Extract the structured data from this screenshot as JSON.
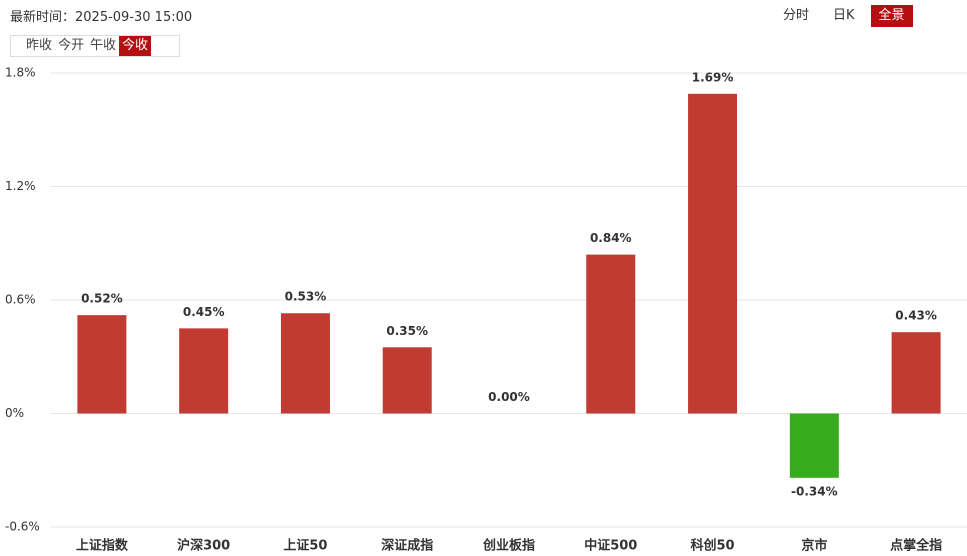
{
  "header": {
    "time_text": "最新时间：2025-09-30 15:00",
    "view_tabs": [
      {
        "label": "分时"
      },
      {
        "label": "日K"
      },
      {
        "label": "全景",
        "active": true
      }
    ],
    "base_buttons": [
      {
        "label": "昨收"
      },
      {
        "label": "今开"
      },
      {
        "label": "午收"
      },
      {
        "label": "今收",
        "active": true
      }
    ]
  },
  "chart_data": {
    "type": "bar",
    "categories": [
      "上证指数",
      "沪深300",
      "上证50",
      "深证成指",
      "创业板指",
      "中证500",
      "科创50",
      "京市",
      "点掌全指"
    ],
    "values": [
      0.52,
      0.45,
      0.53,
      0.35,
      0.0,
      0.84,
      1.69,
      -0.34,
      0.43
    ],
    "value_labels": [
      "0.52%",
      "0.45%",
      "0.53%",
      "0.35%",
      "0.00%",
      "0.84%",
      "1.69%",
      "-0.34%",
      "0.43%"
    ],
    "positive_color": "#c23b32",
    "negative_color": "#36ab1c",
    "ylim": [
      -0.6,
      1.8
    ],
    "yticks": [
      {
        "value": -0.6,
        "label": "-0.6%"
      },
      {
        "value": 0,
        "label": "0%"
      },
      {
        "value": 0.6,
        "label": "0.6%"
      },
      {
        "value": 1.2,
        "label": "1.2%"
      },
      {
        "value": 1.8,
        "label": "1.8%"
      }
    ],
    "grid": true
  }
}
